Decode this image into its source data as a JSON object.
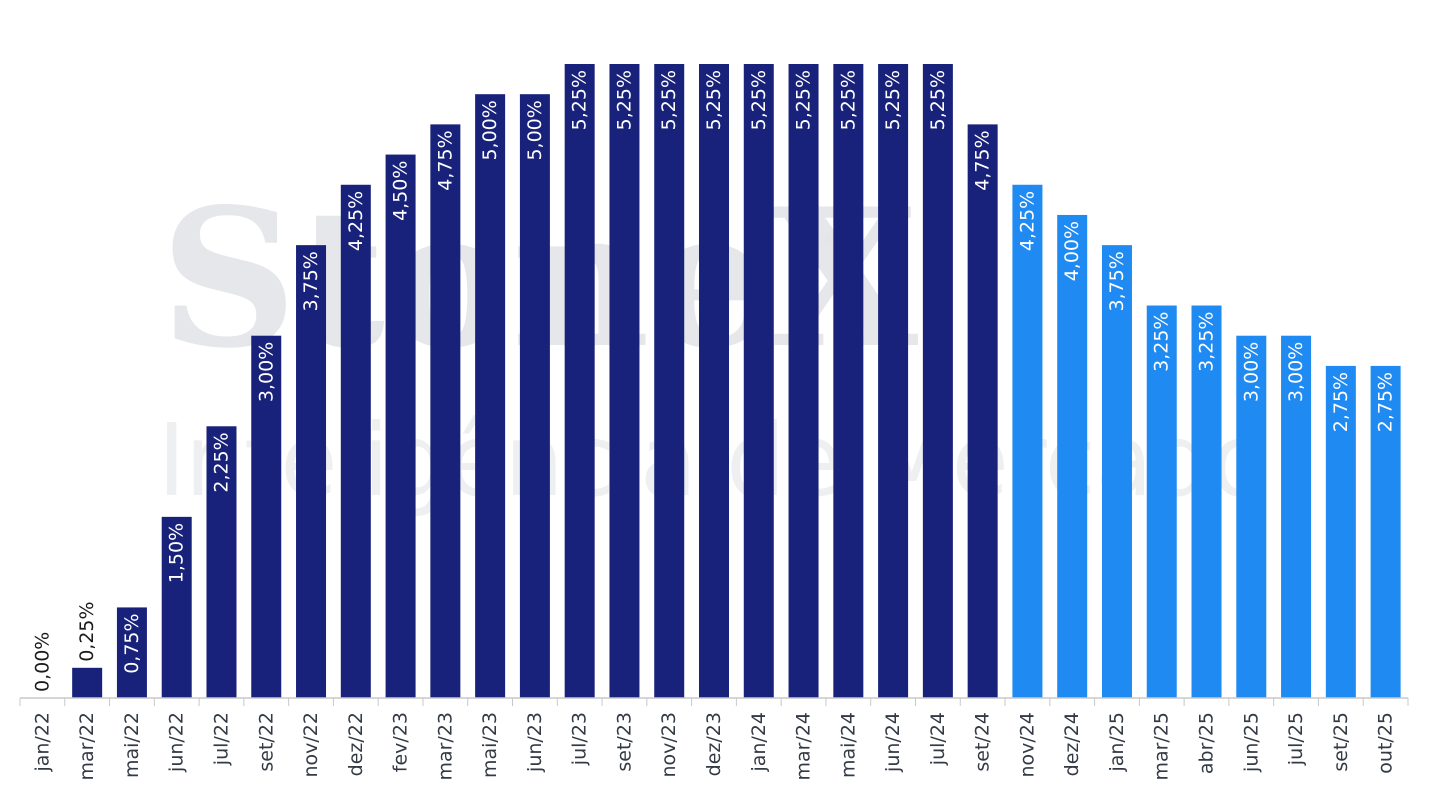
{
  "watermark": {
    "brand": "StoneX",
    "registered": "®",
    "tagline": "Inteligência de Mercado"
  },
  "colors": {
    "navy": "#19227b",
    "blue": "#1f8af2",
    "axis": "#c8c8c8",
    "label_dark": "#1a1a1a",
    "label_light": "#ffffff"
  },
  "chart_data": {
    "type": "bar",
    "title": "",
    "xlabel": "",
    "ylabel": "",
    "ylim": [
      0,
      5.25
    ],
    "grid": false,
    "categories": [
      "jan/22",
      "mar/22",
      "mai/22",
      "jun/22",
      "jul/22",
      "set/22",
      "nov/22",
      "dez/22",
      "fev/23",
      "mar/23",
      "mai/23",
      "jun/23",
      "jul/23",
      "set/23",
      "nov/23",
      "dez/23",
      "jan/24",
      "mar/24",
      "mai/24",
      "jun/24",
      "jul/24",
      "set/24",
      "nov/24",
      "dez/24",
      "jan/25",
      "mar/25",
      "abr/25",
      "jun/25",
      "jul/25",
      "set/25",
      "out/25"
    ],
    "values": [
      0.0,
      0.25,
      0.75,
      1.5,
      2.25,
      3.0,
      3.75,
      4.25,
      4.5,
      4.75,
      5.0,
      5.0,
      5.25,
      5.25,
      5.25,
      5.25,
      5.25,
      5.25,
      5.25,
      5.25,
      5.25,
      4.75,
      4.25,
      4.0,
      3.75,
      3.25,
      3.25,
      3.0,
      3.0,
      2.75,
      2.75
    ],
    "labels": [
      "0,00%",
      "0,25%",
      "0,75%",
      "1,50%",
      "2,25%",
      "3,00%",
      "3,75%",
      "4,25%",
      "4,50%",
      "4,75%",
      "5,00%",
      "5,00%",
      "5,25%",
      "5,25%",
      "5,25%",
      "5,25%",
      "5,25%",
      "5,25%",
      "5,25%",
      "5,25%",
      "5,25%",
      "4,75%",
      "4,25%",
      "4,00%",
      "3,75%",
      "3,25%",
      "3,25%",
      "3,00%",
      "3,00%",
      "2,75%",
      "2,75%"
    ],
    "bar_colors": [
      "navy",
      "navy",
      "navy",
      "navy",
      "navy",
      "navy",
      "navy",
      "navy",
      "navy",
      "navy",
      "navy",
      "navy",
      "navy",
      "navy",
      "navy",
      "navy",
      "navy",
      "navy",
      "navy",
      "navy",
      "navy",
      "navy",
      "blue",
      "blue",
      "blue",
      "blue",
      "blue",
      "blue",
      "blue",
      "blue",
      "blue"
    ]
  }
}
